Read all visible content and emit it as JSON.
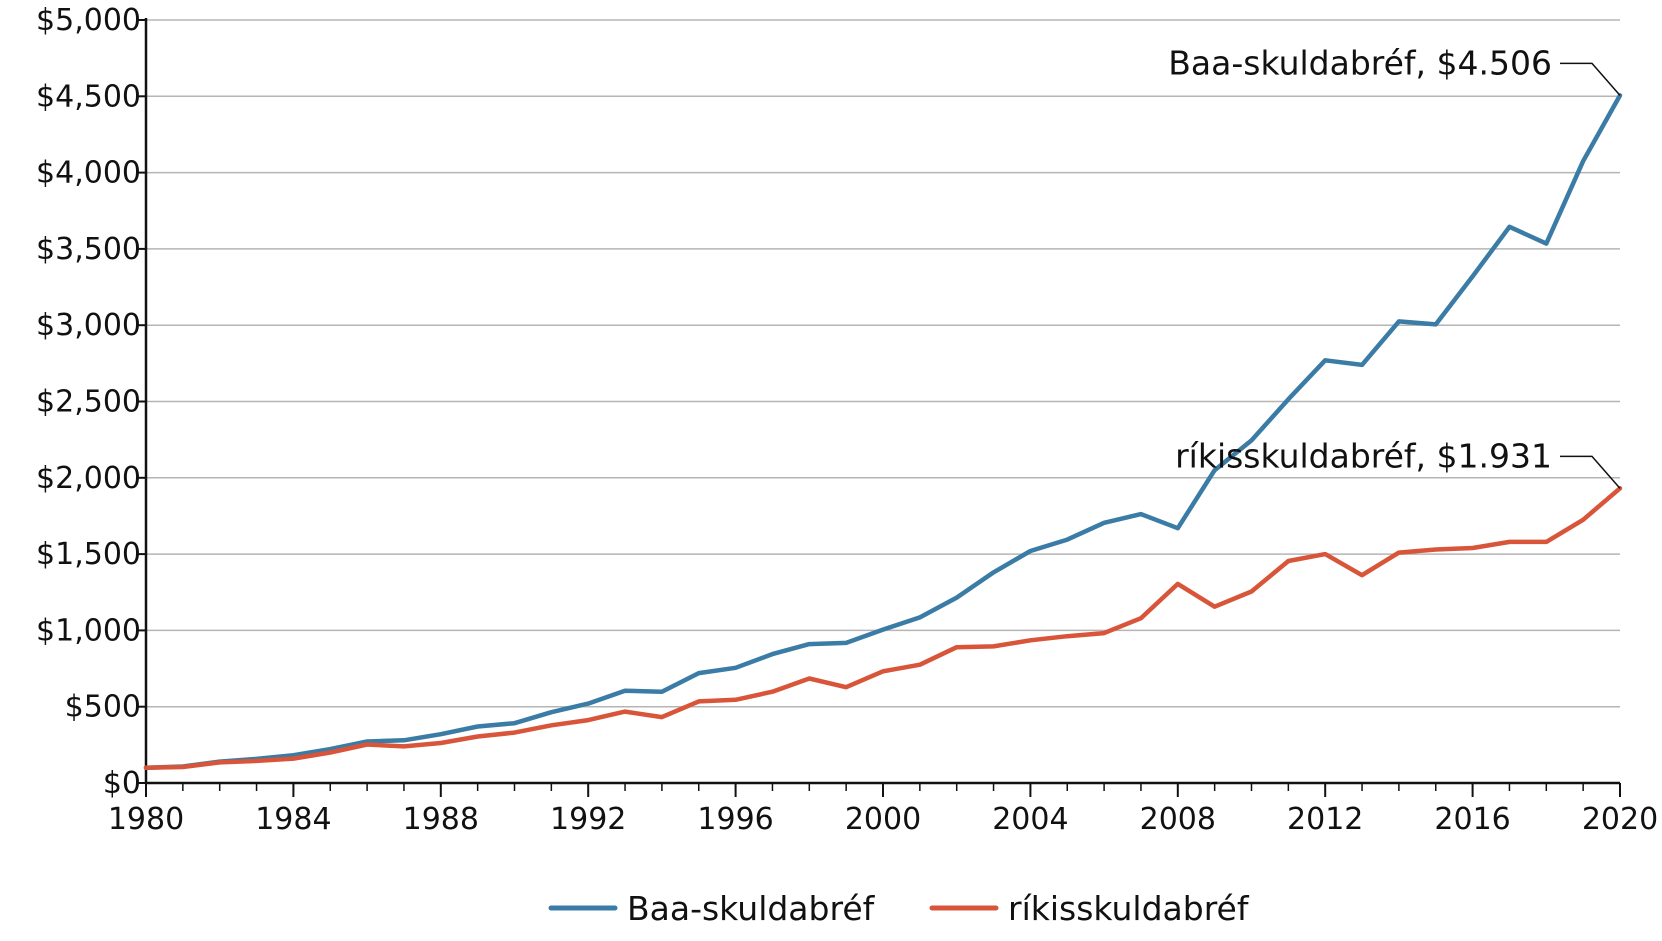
{
  "chart_data": {
    "type": "line",
    "title": "",
    "xlabel": "",
    "ylabel": "",
    "xlim": [
      1980,
      2020
    ],
    "ylim": [
      0,
      5000
    ],
    "x_ticks": [
      1980,
      1984,
      1988,
      1992,
      1996,
      2000,
      2004,
      2008,
      2012,
      2016,
      2020
    ],
    "x_tick_labels": [
      "1980",
      "1984",
      "1988",
      "1992",
      "1996",
      "2000",
      "2004",
      "2008",
      "2012",
      "2016",
      "2020"
    ],
    "y_ticks": [
      0,
      500,
      1000,
      1500,
      2000,
      2500,
      3000,
      3500,
      4000,
      4500,
      5000
    ],
    "y_tick_labels": [
      "$0",
      "$500",
      "$1,000",
      "$1,500",
      "$2,000",
      "$2,500",
      "$3,000",
      "$3,500",
      "$4,000",
      "$4,500",
      "$5,000"
    ],
    "grid": "horizontal",
    "legend_position": "bottom",
    "x": [
      1980,
      1981,
      1982,
      1983,
      1984,
      1985,
      1986,
      1987,
      1988,
      1989,
      1990,
      1991,
      1992,
      1993,
      1994,
      1995,
      1996,
      1997,
      1998,
      1999,
      2000,
      2001,
      2002,
      2003,
      2004,
      2005,
      2006,
      2007,
      2008,
      2009,
      2010,
      2011,
      2012,
      2013,
      2014,
      2015,
      2016,
      2017,
      2018,
      2019,
      2020
    ],
    "series": [
      {
        "name": "Baa-skuldabréf",
        "color": "#3a7ca5",
        "values": [
          100,
          108,
          140,
          158,
          182,
          222,
          272,
          280,
          320,
          370,
          392,
          464,
          520,
          605,
          598,
          720,
          755,
          845,
          910,
          918,
          1005,
          1085,
          1215,
          1380,
          1520,
          1595,
          1705,
          1762,
          1670,
          2050,
          2245,
          2515,
          2770,
          2740,
          3025,
          3005,
          3320,
          3645,
          3535,
          4075,
          4506
        ],
        "end_label": "Baa-skuldabréf, $4.506"
      },
      {
        "name": "ríkisskuldabréf",
        "color": "#d9553a",
        "values": [
          100,
          105,
          135,
          145,
          160,
          200,
          252,
          240,
          262,
          305,
          330,
          378,
          412,
          468,
          432,
          535,
          545,
          598,
          685,
          628,
          732,
          775,
          890,
          895,
          935,
          962,
          982,
          1080,
          1305,
          1155,
          1255,
          1455,
          1500,
          1362,
          1510,
          1530,
          1540,
          1580,
          1580,
          1725,
          1931
        ],
        "end_label": "ríkisskuldabréf, $1.931"
      }
    ]
  }
}
